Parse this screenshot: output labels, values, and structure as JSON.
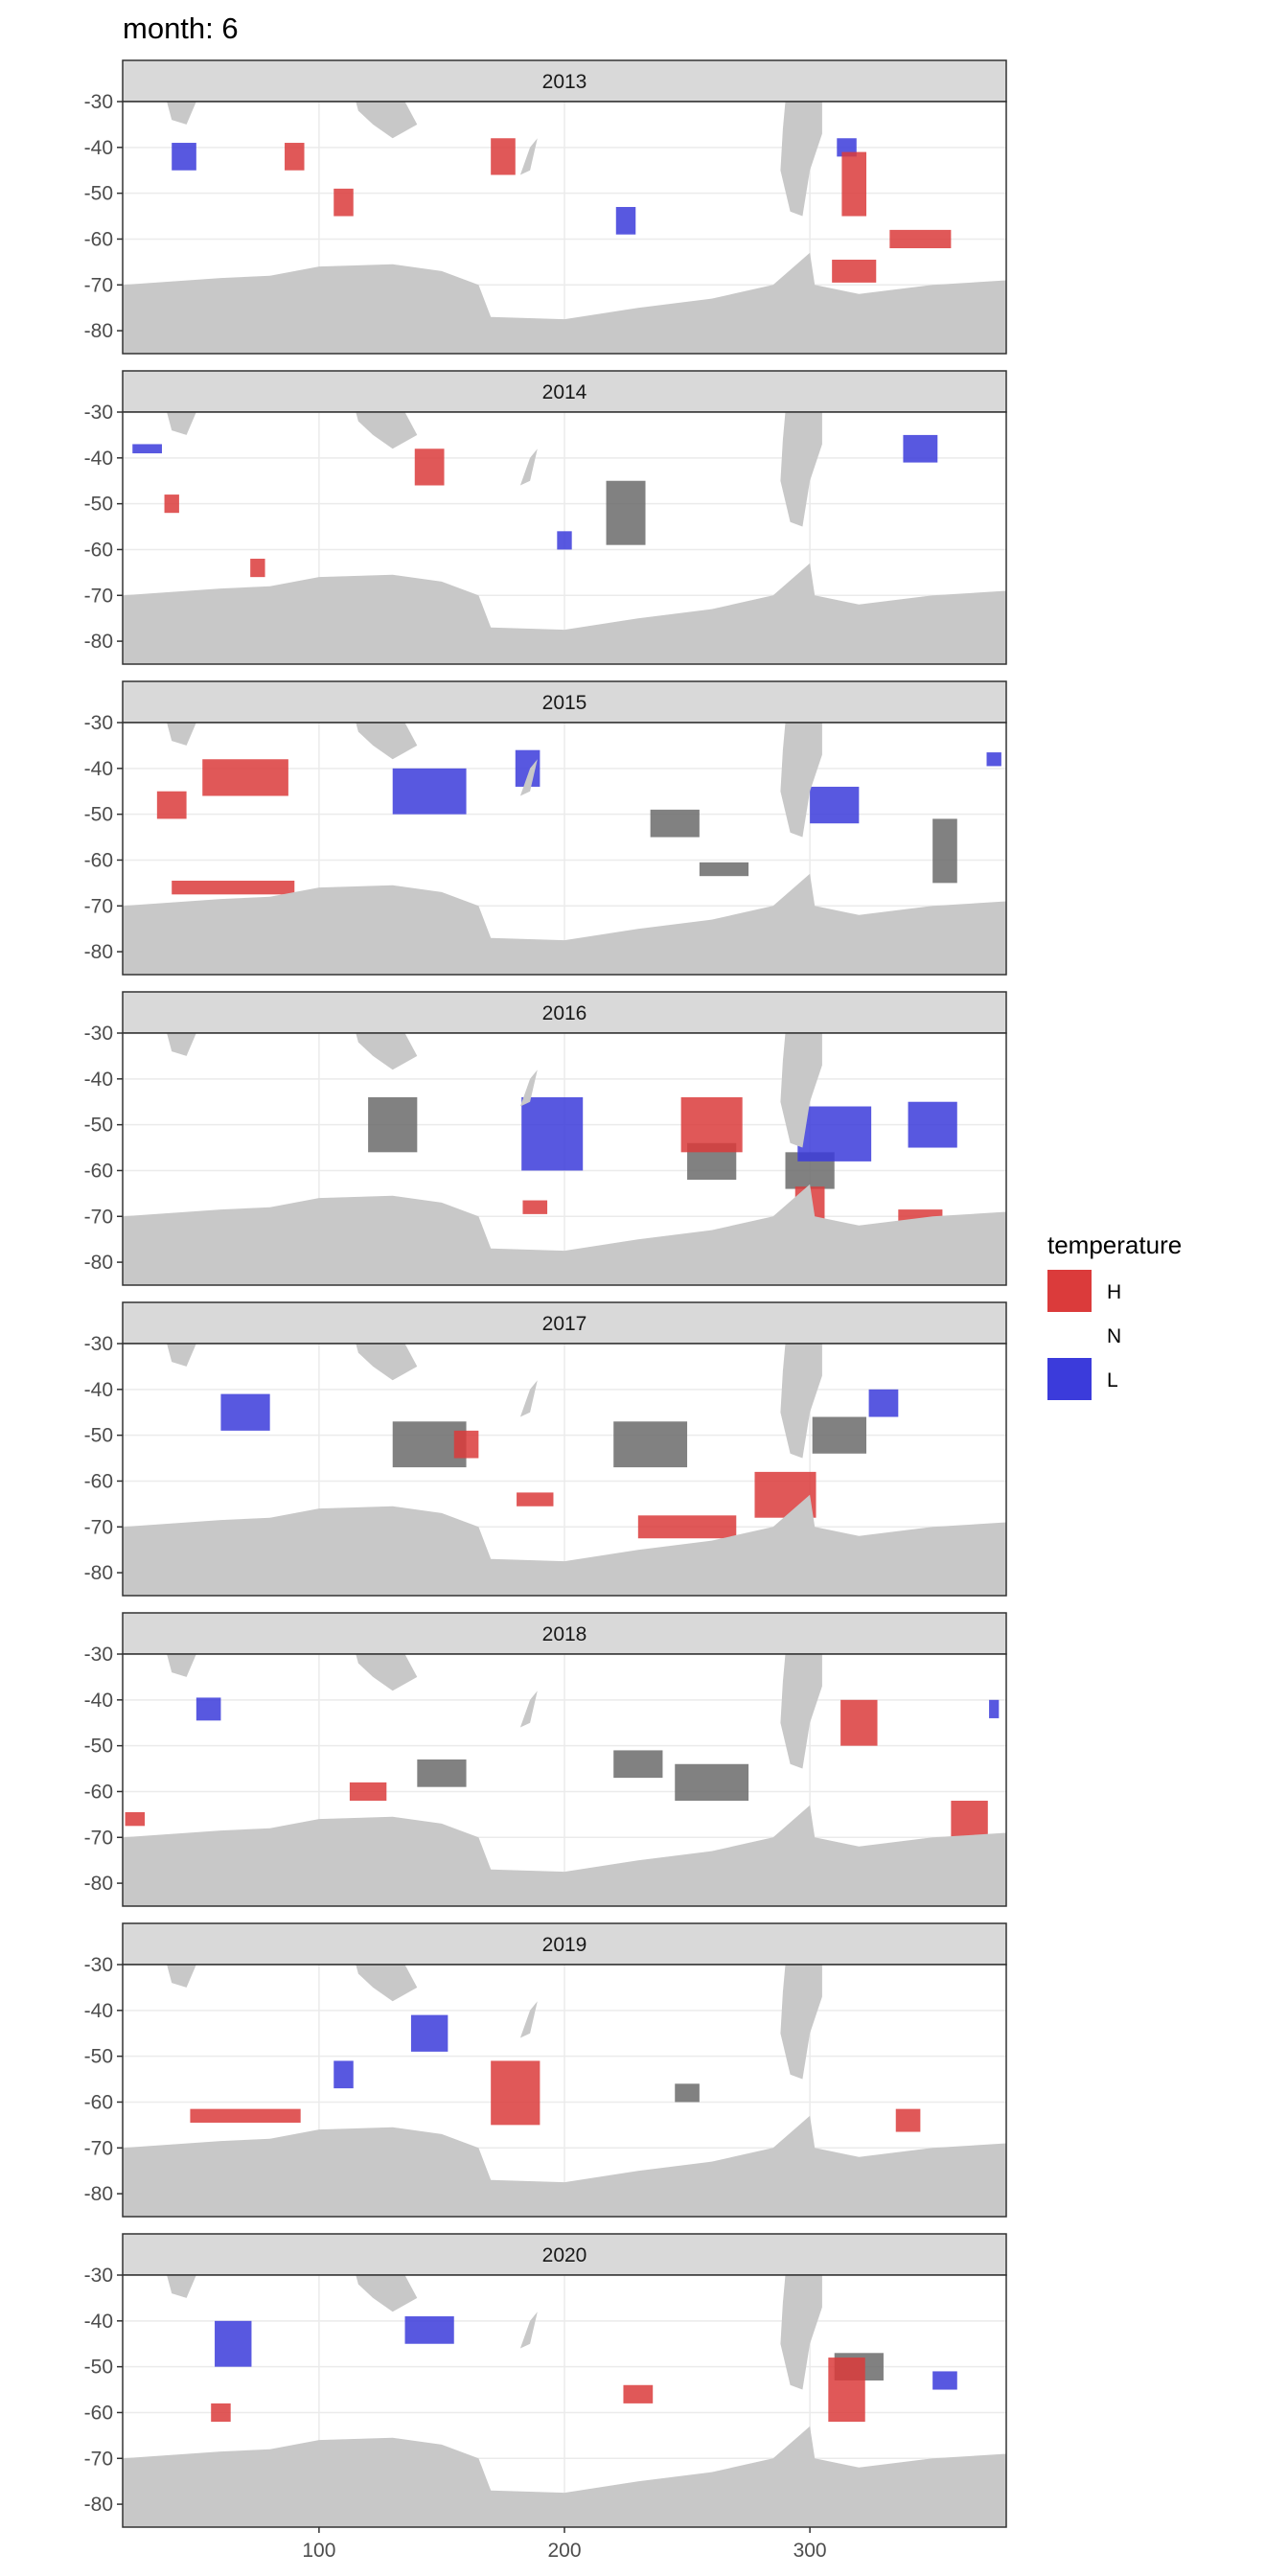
{
  "title": "month: 6",
  "legend": {
    "title": "temperature",
    "items": [
      {
        "label": "H",
        "color": "#db3b3b"
      },
      {
        "label": "N",
        "color": "#6b6b6b"
      },
      {
        "label": "L",
        "color": "#3b3bdb"
      }
    ],
    "placement": "right"
  },
  "colors": {
    "land": "#c8c8c8",
    "panel_bg": "#ffffff",
    "strip_bg": "#d9d9d9",
    "grid": "#ebebeb",
    "axis_text": "#4d4d4d",
    "N_display": "#6b6b6b"
  },
  "chart_data": {
    "type": "heatmap",
    "facet_by": "year",
    "facets": [
      "2013",
      "2014",
      "2015",
      "2016",
      "2017",
      "2018",
      "2019",
      "2020"
    ],
    "xlim": [
      20,
      380
    ],
    "ylim": [
      -85,
      -30
    ],
    "x_ticks": [
      100,
      200,
      300
    ],
    "y_ticks": [
      -30,
      -40,
      -50,
      -60,
      -70,
      -80
    ],
    "grid": true,
    "panels": [
      {
        "year": "2013",
        "H": [
          [
            90,
            -42,
            8,
            6
          ],
          [
            110,
            -52,
            8,
            6
          ],
          [
            175,
            -42,
            10,
            8
          ],
          [
            318,
            -48,
            10,
            14
          ],
          [
            345,
            -60,
            25,
            4
          ],
          [
            318,
            -67,
            18,
            5
          ]
        ],
        "L": [
          [
            45,
            -42,
            10,
            6
          ],
          [
            225,
            -56,
            8,
            6
          ],
          [
            315,
            -40,
            8,
            4
          ]
        ],
        "N": []
      },
      {
        "year": "2014",
        "H": [
          [
            145,
            -42,
            12,
            8
          ],
          [
            40,
            -50,
            6,
            4
          ],
          [
            75,
            -64,
            6,
            4
          ]
        ],
        "L": [
          [
            30,
            -38,
            12,
            2
          ],
          [
            345,
            -38,
            14,
            6
          ],
          [
            200,
            -58,
            6,
            4
          ]
        ],
        "N": [
          [
            225,
            -52,
            16,
            14
          ]
        ]
      },
      {
        "year": "2015",
        "H": [
          [
            70,
            -42,
            35,
            8
          ],
          [
            40,
            -48,
            12,
            6
          ],
          [
            65,
            -66,
            50,
            3
          ]
        ],
        "L": [
          [
            145,
            -45,
            30,
            10
          ],
          [
            185,
            -40,
            10,
            8
          ],
          [
            310,
            -48,
            20,
            8
          ],
          [
            375,
            -38,
            6,
            3
          ]
        ],
        "N": [
          [
            245,
            -52,
            20,
            6
          ],
          [
            265,
            -62,
            20,
            3
          ],
          [
            355,
            -58,
            10,
            14
          ]
        ]
      },
      {
        "year": "2016",
        "H": [
          [
            260,
            -50,
            25,
            12
          ],
          [
            300,
            -67,
            12,
            7
          ],
          [
            188,
            -68,
            10,
            3
          ],
          [
            345,
            -70,
            18,
            3
          ]
        ],
        "L": [
          [
            195,
            -52,
            25,
            16
          ],
          [
            310,
            -52,
            30,
            12
          ],
          [
            350,
            -50,
            20,
            10
          ]
        ],
        "N": [
          [
            130,
            -50,
            20,
            12
          ],
          [
            260,
            -58,
            20,
            8
          ],
          [
            300,
            -60,
            20,
            8
          ]
        ]
      },
      {
        "year": "2017",
        "H": [
          [
            290,
            -63,
            25,
            10
          ],
          [
            250,
            -70,
            40,
            5
          ],
          [
            188,
            -64,
            15,
            3
          ],
          [
            160,
            -52,
            10,
            6
          ]
        ],
        "L": [
          [
            70,
            -45,
            20,
            8
          ],
          [
            330,
            -43,
            12,
            6
          ]
        ],
        "N": [
          [
            145,
            -52,
            30,
            10
          ],
          [
            235,
            -52,
            30,
            10
          ],
          [
            312,
            -50,
            22,
            8
          ]
        ]
      },
      {
        "year": "2018",
        "H": [
          [
            320,
            -45,
            15,
            10
          ],
          [
            365,
            -67,
            15,
            10
          ],
          [
            25,
            -66,
            8,
            3
          ],
          [
            120,
            -60,
            15,
            4
          ]
        ],
        "L": [
          [
            55,
            -42,
            10,
            5
          ],
          [
            375,
            -42,
            4,
            4
          ]
        ],
        "N": [
          [
            150,
            -56,
            20,
            6
          ],
          [
            260,
            -58,
            30,
            8
          ],
          [
            230,
            -54,
            20,
            6
          ]
        ]
      },
      {
        "year": "2019",
        "H": [
          [
            70,
            -63,
            45,
            3
          ],
          [
            180,
            -58,
            20,
            14
          ],
          [
            340,
            -64,
            10,
            5
          ]
        ],
        "L": [
          [
            145,
            -45,
            15,
            8
          ],
          [
            110,
            -54,
            8,
            6
          ]
        ],
        "N": [
          [
            250,
            -58,
            10,
            4
          ]
        ]
      },
      {
        "year": "2020",
        "H": [
          [
            315,
            -55,
            15,
            14
          ],
          [
            60,
            -60,
            8,
            4
          ],
          [
            230,
            -56,
            12,
            4
          ]
        ],
        "L": [
          [
            145,
            -42,
            20,
            6
          ],
          [
            65,
            -45,
            15,
            10
          ],
          [
            355,
            -53,
            10,
            4
          ]
        ],
        "N": [
          [
            320,
            -50,
            20,
            6
          ]
        ]
      }
    ]
  }
}
